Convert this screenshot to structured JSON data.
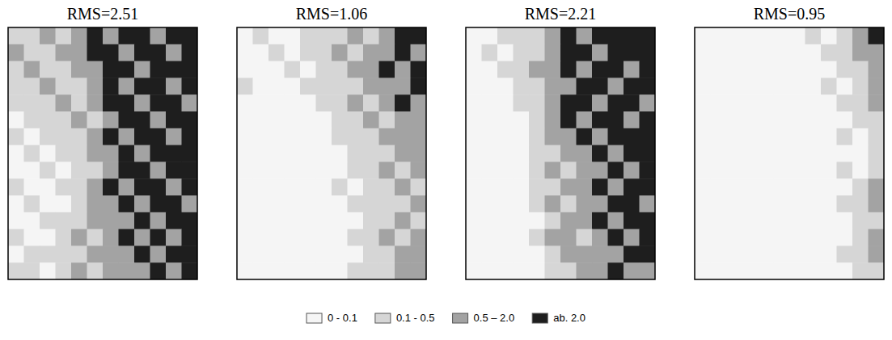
{
  "chart_data": [
    {
      "type": "heatmap",
      "title": "RMS=2.51",
      "tick_labels": false,
      "cells": [
        [
          0.3,
          0.3,
          1,
          0.3,
          1,
          3,
          1,
          3,
          3,
          1,
          3,
          3
        ],
        [
          1,
          0.3,
          0.3,
          1,
          1,
          3,
          3,
          1,
          3,
          3,
          1,
          3
        ],
        [
          0.3,
          1,
          0.3,
          0.3,
          1,
          1,
          3,
          3,
          1,
          3,
          3,
          3
        ],
        [
          0.3,
          0.3,
          1,
          0.3,
          0.3,
          1,
          3,
          1,
          3,
          3,
          1,
          3
        ],
        [
          0.3,
          0.3,
          0.3,
          1,
          0.3,
          1,
          3,
          3,
          1,
          3,
          3,
          1
        ],
        [
          0.05,
          0.3,
          0.3,
          0.3,
          1,
          0.3,
          1,
          3,
          3,
          1,
          3,
          3
        ],
        [
          0.3,
          0.05,
          0.3,
          0.3,
          0.3,
          1,
          3,
          1,
          3,
          3,
          1,
          3
        ],
        [
          0.05,
          0.3,
          0.05,
          0.3,
          0.3,
          1,
          1,
          3,
          1,
          3,
          3,
          3
        ],
        [
          0.05,
          0.05,
          0.3,
          0.05,
          0.3,
          0.3,
          1,
          3,
          3,
          1,
          3,
          3
        ],
        [
          0.3,
          0.05,
          0.05,
          0.3,
          0.3,
          1,
          3,
          1,
          3,
          3,
          1,
          3
        ],
        [
          0.05,
          0.3,
          0.05,
          0.05,
          0.3,
          1,
          1,
          3,
          1,
          3,
          3,
          1
        ],
        [
          0.05,
          0.05,
          0.3,
          0.3,
          0.3,
          1,
          1,
          1,
          3,
          1,
          3,
          3
        ],
        [
          0.3,
          0.05,
          0.05,
          0.3,
          1,
          0.3,
          1,
          3,
          1,
          3,
          1,
          3
        ],
        [
          0.05,
          0.3,
          0.3,
          0.3,
          0.3,
          1,
          1,
          1,
          3,
          1,
          3,
          3
        ],
        [
          0.3,
          0.3,
          0.05,
          0.3,
          1,
          0.3,
          1,
          1,
          1,
          3,
          1,
          3
        ]
      ]
    },
    {
      "type": "heatmap",
      "title": "RMS=1.06",
      "tick_labels": false,
      "cells": [
        [
          0.05,
          0.3,
          0.05,
          0.05,
          0.3,
          0.3,
          0.3,
          1,
          0.3,
          1,
          3,
          3
        ],
        [
          0.05,
          0.05,
          0.3,
          0.05,
          0.3,
          0.3,
          1,
          0.3,
          1,
          1,
          3,
          1
        ],
        [
          0.05,
          0.05,
          0.05,
          0.3,
          0.05,
          0.3,
          0.3,
          1,
          1,
          3,
          1,
          3
        ],
        [
          0.3,
          0.05,
          0.05,
          0.05,
          0.3,
          0.3,
          0.3,
          0.3,
          1,
          1,
          1,
          3
        ],
        [
          0.05,
          0.05,
          0.05,
          0.05,
          0.05,
          0.3,
          0.3,
          1,
          0.3,
          1,
          3,
          1
        ],
        [
          0.05,
          0.05,
          0.05,
          0.05,
          0.05,
          0.05,
          0.3,
          0.3,
          1,
          0.3,
          1,
          1
        ],
        [
          0.05,
          0.05,
          0.05,
          0.05,
          0.05,
          0.05,
          0.3,
          0.3,
          0.3,
          1,
          1,
          1
        ],
        [
          0.05,
          0.05,
          0.05,
          0.05,
          0.05,
          0.05,
          0.05,
          0.3,
          0.3,
          0.3,
          1,
          1
        ],
        [
          0.05,
          0.05,
          0.05,
          0.05,
          0.05,
          0.05,
          0.05,
          0.3,
          0.3,
          1,
          0.3,
          1
        ],
        [
          0.05,
          0.05,
          0.05,
          0.05,
          0.05,
          0.05,
          0.3,
          0.05,
          0.3,
          0.3,
          1,
          0.3
        ],
        [
          0.05,
          0.05,
          0.05,
          0.05,
          0.05,
          0.05,
          0.05,
          0.3,
          0.3,
          0.3,
          0.3,
          1
        ],
        [
          0.05,
          0.05,
          0.05,
          0.05,
          0.05,
          0.05,
          0.05,
          0.05,
          0.3,
          0.3,
          1,
          0.3
        ],
        [
          0.05,
          0.05,
          0.05,
          0.05,
          0.05,
          0.05,
          0.05,
          0.3,
          0.3,
          1,
          0.3,
          1
        ],
        [
          0.05,
          0.05,
          0.05,
          0.05,
          0.05,
          0.05,
          0.05,
          0.05,
          0.3,
          0.3,
          1,
          1
        ],
        [
          0.05,
          0.05,
          0.05,
          0.05,
          0.05,
          0.05,
          0.05,
          0.3,
          0.3,
          0.3,
          1,
          1
        ]
      ]
    },
    {
      "type": "heatmap",
      "title": "RMS=2.21",
      "tick_labels": false,
      "cells": [
        [
          0.05,
          0.05,
          0.3,
          0.3,
          0.3,
          1,
          3,
          1,
          3,
          3,
          3,
          3
        ],
        [
          0.05,
          0.3,
          0.05,
          0.3,
          0.3,
          1,
          3,
          3,
          1,
          3,
          3,
          3
        ],
        [
          0.05,
          0.05,
          0.3,
          0.3,
          1,
          1,
          3,
          1,
          3,
          3,
          1,
          3
        ],
        [
          0.05,
          0.05,
          0.05,
          0.3,
          0.3,
          1,
          1,
          3,
          3,
          1,
          3,
          3
        ],
        [
          0.05,
          0.05,
          0.05,
          0.3,
          0.3,
          1,
          3,
          3,
          1,
          3,
          3,
          1
        ],
        [
          0.05,
          0.05,
          0.05,
          0.05,
          0.3,
          1,
          3,
          1,
          3,
          3,
          1,
          3
        ],
        [
          0.05,
          0.05,
          0.05,
          0.05,
          0.3,
          1,
          1,
          3,
          1,
          3,
          3,
          3
        ],
        [
          0.05,
          0.05,
          0.05,
          0.05,
          0.3,
          0.3,
          1,
          1,
          3,
          1,
          3,
          3
        ],
        [
          0.05,
          0.05,
          0.05,
          0.05,
          0.3,
          1,
          0.3,
          1,
          1,
          3,
          1,
          3
        ],
        [
          0.05,
          0.05,
          0.05,
          0.05,
          0.3,
          0.3,
          1,
          1,
          3,
          1,
          3,
          3
        ],
        [
          0.05,
          0.05,
          0.05,
          0.05,
          0.3,
          1,
          0.3,
          1,
          1,
          3,
          3,
          1
        ],
        [
          0.05,
          0.05,
          0.05,
          0.05,
          0.05,
          0.3,
          1,
          1,
          3,
          1,
          3,
          3
        ],
        [
          0.05,
          0.05,
          0.05,
          0.05,
          0.3,
          1,
          1,
          0.3,
          1,
          3,
          1,
          3
        ],
        [
          0.05,
          0.05,
          0.05,
          0.05,
          0.05,
          0.3,
          1,
          1,
          1,
          1,
          3,
          3
        ],
        [
          0.05,
          0.05,
          0.05,
          0.05,
          0.05,
          0.3,
          0.3,
          1,
          1,
          3,
          1,
          1
        ]
      ]
    },
    {
      "type": "heatmap",
      "title": "RMS=0.95",
      "tick_labels": false,
      "cells": [
        [
          0.05,
          0.05,
          0.05,
          0.05,
          0.05,
          0.05,
          0.05,
          0.3,
          0.05,
          0.3,
          1,
          3
        ],
        [
          0.05,
          0.05,
          0.05,
          0.05,
          0.05,
          0.05,
          0.05,
          0.05,
          0.3,
          0.3,
          1,
          1
        ],
        [
          0.05,
          0.05,
          0.05,
          0.05,
          0.05,
          0.05,
          0.05,
          0.05,
          0.05,
          0.3,
          0.3,
          1
        ],
        [
          0.05,
          0.05,
          0.05,
          0.05,
          0.05,
          0.05,
          0.05,
          0.05,
          0.3,
          0.05,
          0.3,
          1
        ],
        [
          0.05,
          0.05,
          0.05,
          0.05,
          0.05,
          0.05,
          0.05,
          0.05,
          0.05,
          0.3,
          0.3,
          1
        ],
        [
          0.05,
          0.05,
          0.05,
          0.05,
          0.05,
          0.05,
          0.05,
          0.05,
          0.05,
          0.05,
          0.3,
          0.3
        ],
        [
          0.05,
          0.05,
          0.05,
          0.05,
          0.05,
          0.05,
          0.05,
          0.05,
          0.05,
          0.3,
          0.05,
          0.3
        ],
        [
          0.05,
          0.05,
          0.05,
          0.05,
          0.05,
          0.05,
          0.05,
          0.05,
          0.05,
          0.05,
          0.05,
          0.3
        ],
        [
          0.05,
          0.05,
          0.05,
          0.05,
          0.05,
          0.05,
          0.05,
          0.05,
          0.05,
          0.3,
          0.05,
          0.3
        ],
        [
          0.05,
          0.05,
          0.05,
          0.05,
          0.05,
          0.05,
          0.05,
          0.05,
          0.05,
          0.05,
          0.3,
          1
        ],
        [
          0.05,
          0.05,
          0.05,
          0.05,
          0.05,
          0.05,
          0.05,
          0.05,
          0.05,
          0.3,
          0.3,
          1
        ],
        [
          0.05,
          0.05,
          0.05,
          0.05,
          0.05,
          0.05,
          0.05,
          0.05,
          0.05,
          0.05,
          0.3,
          0.3
        ],
        [
          0.05,
          0.05,
          0.05,
          0.05,
          0.05,
          0.05,
          0.05,
          0.05,
          0.05,
          0.05,
          0.3,
          1
        ],
        [
          0.05,
          0.05,
          0.05,
          0.05,
          0.05,
          0.05,
          0.05,
          0.05,
          0.05,
          0.3,
          0.3,
          1
        ],
        [
          0.05,
          0.05,
          0.05,
          0.05,
          0.05,
          0.05,
          0.05,
          0.05,
          0.05,
          0.05,
          0.3,
          0.3
        ]
      ]
    }
  ],
  "color_scale": {
    "thresholds": [
      0,
      0.1,
      0.5,
      2.0
    ],
    "labels": [
      "0 - 0.1",
      "0.1 - 0.5",
      "0.5 – 2.0",
      "ab. 2.0"
    ],
    "colors": [
      "#f5f5f5",
      "#d6d6d6",
      "#a3a3a3",
      "#1e1e1e"
    ]
  }
}
